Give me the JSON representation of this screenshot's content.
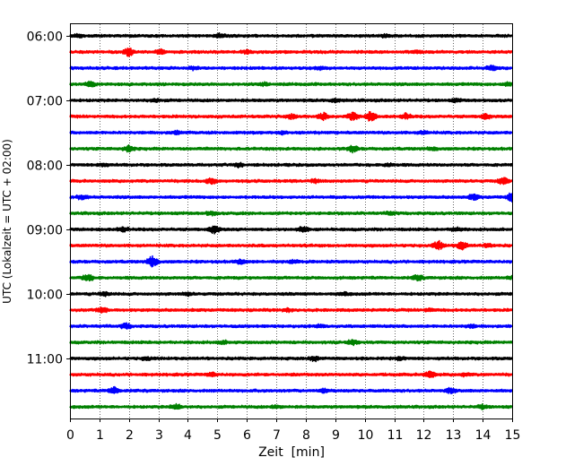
{
  "chart_data": {
    "type": "line",
    "title": "",
    "xlabel": "Zeit  [min]",
    "ylabel": "UTC (Lokalzeit = UTC + 02:00)",
    "xlim": [
      0,
      15
    ],
    "x_ticks": [
      0,
      1,
      2,
      3,
      4,
      5,
      6,
      7,
      8,
      9,
      10,
      11,
      12,
      13,
      14,
      15
    ],
    "x_tick_labels": [
      "0",
      "1",
      "2",
      "3",
      "4",
      "5",
      "6",
      "7",
      "8",
      "9",
      "10",
      "11",
      "12",
      "13",
      "14",
      "15"
    ],
    "y_tick_labels": [
      "06:00",
      "07:00",
      "08:00",
      "09:00",
      "10:00",
      "11:00"
    ],
    "y_tick_rows": [
      0,
      4,
      8,
      12,
      16,
      20
    ],
    "grid": {
      "x": true,
      "y": false,
      "style": "dotted"
    },
    "trace_colors": [
      "#000000",
      "#ff0000",
      "#0000ff",
      "#008000"
    ],
    "series": [
      {
        "start": "06:00",
        "events": [
          [
            0.3,
            0.3
          ],
          [
            5.1,
            0.4
          ],
          [
            10.7,
            0.3
          ]
        ]
      },
      {
        "start": "06:15",
        "events": [
          [
            2.0,
            0.9
          ],
          [
            3.1,
            0.5
          ],
          [
            6.0,
            0.3
          ],
          [
            11.8,
            0.3
          ]
        ]
      },
      {
        "start": "06:30",
        "events": [
          [
            4.2,
            0.3
          ],
          [
            8.5,
            0.3
          ],
          [
            14.3,
            0.5
          ]
        ]
      },
      {
        "start": "06:45",
        "events": [
          [
            0.7,
            0.6
          ],
          [
            6.6,
            0.3
          ],
          [
            14.9,
            0.5
          ]
        ]
      },
      {
        "start": "07:00",
        "events": [
          [
            2.9,
            0.3
          ],
          [
            9.0,
            0.3
          ],
          [
            13.1,
            0.3
          ]
        ]
      },
      {
        "start": "07:15",
        "events": [
          [
            7.5,
            0.5
          ],
          [
            8.6,
            0.8
          ],
          [
            9.6,
            0.9
          ],
          [
            10.2,
            1.1
          ],
          [
            11.4,
            0.6
          ],
          [
            14.1,
            0.5
          ]
        ]
      },
      {
        "start": "07:30",
        "events": [
          [
            3.6,
            0.3
          ],
          [
            7.2,
            0.3
          ],
          [
            12.0,
            0.3
          ]
        ]
      },
      {
        "start": "07:45",
        "events": [
          [
            2.0,
            0.7
          ],
          [
            9.6,
            0.7
          ],
          [
            12.3,
            0.3
          ]
        ]
      },
      {
        "start": "08:00",
        "events": [
          [
            1.1,
            0.3
          ],
          [
            5.7,
            0.4
          ],
          [
            10.8,
            0.3
          ]
        ]
      },
      {
        "start": "08:15",
        "events": [
          [
            4.8,
            0.6
          ],
          [
            8.3,
            0.4
          ],
          [
            14.7,
            0.8
          ]
        ]
      },
      {
        "start": "08:30",
        "events": [
          [
            0.4,
            0.5
          ],
          [
            13.7,
            0.6
          ],
          [
            15.0,
            1.0
          ]
        ]
      },
      {
        "start": "08:45",
        "events": [
          [
            4.8,
            0.4
          ],
          [
            10.9,
            0.3
          ]
        ]
      },
      {
        "start": "09:00",
        "events": [
          [
            1.8,
            0.5
          ],
          [
            4.9,
            0.9
          ],
          [
            7.9,
            0.6
          ],
          [
            13.1,
            0.4
          ]
        ]
      },
      {
        "start": "09:15",
        "events": [
          [
            12.5,
            1.0
          ],
          [
            13.3,
            0.9
          ],
          [
            14.2,
            0.3
          ]
        ]
      },
      {
        "start": "09:30",
        "events": [
          [
            2.8,
            1.3
          ],
          [
            5.8,
            0.5
          ],
          [
            7.6,
            0.3
          ]
        ]
      },
      {
        "start": "09:45",
        "events": [
          [
            0.6,
            0.8
          ],
          [
            11.8,
            0.6
          ],
          [
            15.0,
            0.3
          ]
        ]
      },
      {
        "start": "10:00",
        "events": [
          [
            1.2,
            0.4
          ],
          [
            4.0,
            0.3
          ],
          [
            9.3,
            0.3
          ]
        ]
      },
      {
        "start": "10:15",
        "events": [
          [
            1.1,
            0.6
          ],
          [
            7.4,
            0.3
          ],
          [
            12.2,
            0.3
          ]
        ]
      },
      {
        "start": "10:30",
        "events": [
          [
            1.9,
            0.6
          ],
          [
            8.5,
            0.3
          ],
          [
            13.6,
            0.3
          ]
        ]
      },
      {
        "start": "10:45",
        "events": [
          [
            5.2,
            0.3
          ],
          [
            9.6,
            0.6
          ]
        ]
      },
      {
        "start": "11:00",
        "events": [
          [
            2.6,
            0.3
          ],
          [
            8.3,
            0.5
          ],
          [
            11.2,
            0.3
          ]
        ]
      },
      {
        "start": "11:15",
        "events": [
          [
            4.8,
            0.4
          ],
          [
            12.2,
            0.8
          ],
          [
            13.4,
            0.3
          ]
        ]
      },
      {
        "start": "11:30",
        "events": [
          [
            1.5,
            0.8
          ],
          [
            8.6,
            0.4
          ],
          [
            12.9,
            0.5
          ]
        ]
      },
      {
        "start": "11:45",
        "events": [
          [
            3.6,
            0.6
          ],
          [
            7.0,
            0.3
          ],
          [
            14.0,
            0.4
          ]
        ]
      }
    ]
  }
}
